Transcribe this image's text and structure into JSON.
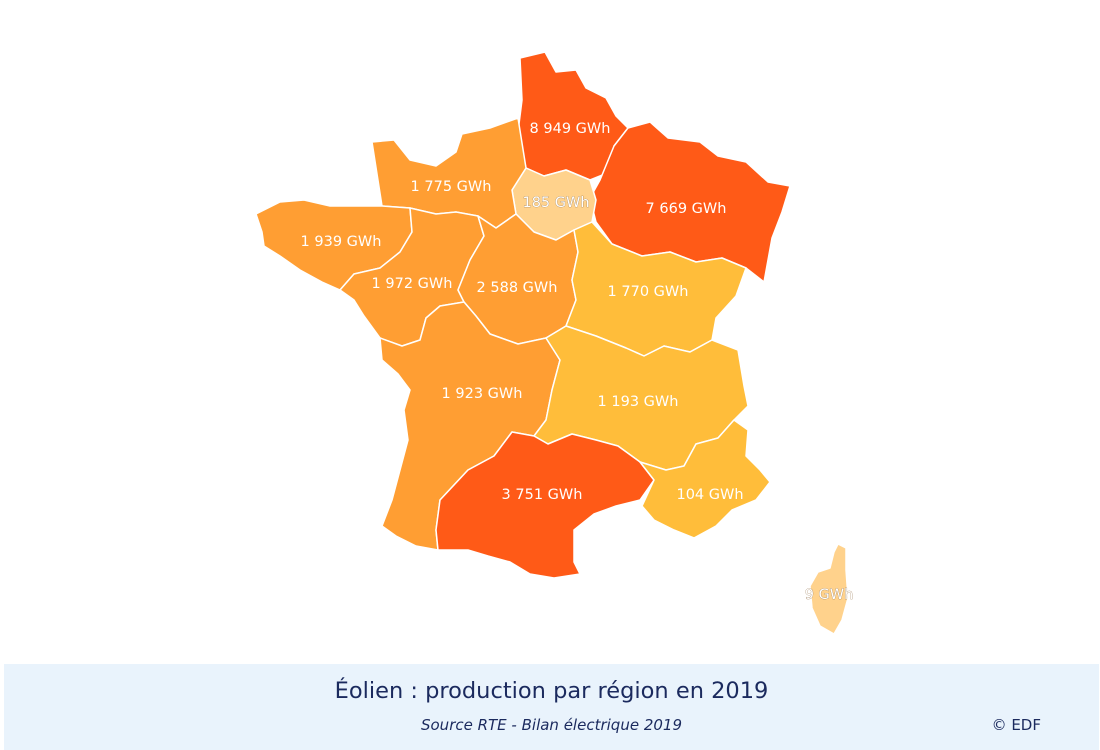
{
  "map": {
    "regions": [
      {
        "id": "hauts-de-france",
        "label": "8 949 GWh",
        "fill": "#ff5a17"
      },
      {
        "id": "grand-est",
        "label": "7 669 GWh",
        "fill": "#ff5a17"
      },
      {
        "id": "ile-de-france",
        "label": "185 GWh",
        "fill": "#ffd28c"
      },
      {
        "id": "normandie",
        "label": "1 775 GWh",
        "fill": "#ff9e33"
      },
      {
        "id": "bretagne",
        "label": "1 939 GWh",
        "fill": "#ff9e33"
      },
      {
        "id": "pays-de-la-loire",
        "label": "1 972 GWh",
        "fill": "#ff9e33"
      },
      {
        "id": "centre-val-de-loire",
        "label": "2 588 GWh",
        "fill": "#ff9e33"
      },
      {
        "id": "bourgogne-franche-comte",
        "label": "1 770 GWh",
        "fill": "#ffbd3a"
      },
      {
        "id": "nouvelle-aquitaine",
        "label": "1 923 GWh",
        "fill": "#ff9e33"
      },
      {
        "id": "auvergne-rhone-alpes",
        "label": "1 193 GWh",
        "fill": "#ffbd3a"
      },
      {
        "id": "occitanie",
        "label": "3 751 GWh",
        "fill": "#ff5a17"
      },
      {
        "id": "provence-alpes-cote-dazur",
        "label": "104 GWh",
        "fill": "#ffbd3a"
      },
      {
        "id": "corse",
        "label": "9 GWh",
        "fill": "#ffd28c"
      }
    ]
  },
  "caption": {
    "title": "Éolien : production par région en 2019",
    "source": "Source RTE - Bilan électrique 2019",
    "copyright": "© EDF"
  }
}
